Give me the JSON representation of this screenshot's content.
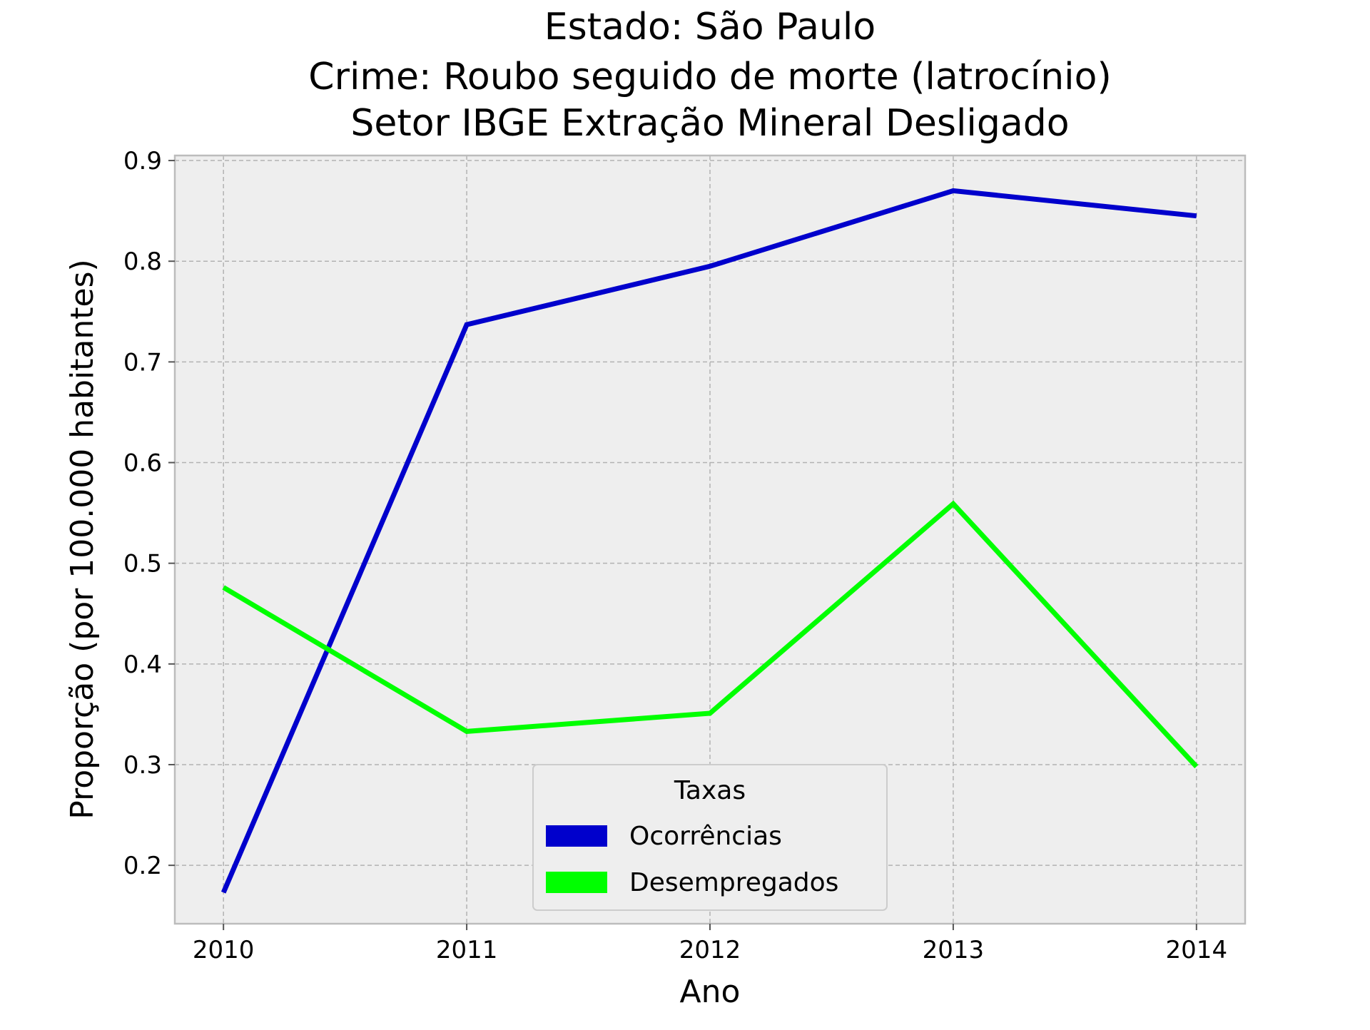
{
  "chart_data": {
    "type": "line",
    "title_lines": [
      "Estado: São Paulo",
      "Crime: Roubo seguido de morte (latrocínio)",
      "Setor IBGE  Extração Mineral   Desligado"
    ],
    "xlabel": "Ano",
    "ylabel": "Proporção (por 100.000 habitantes)",
    "x": [
      2010,
      2011,
      2012,
      2013,
      2014
    ],
    "x_tick_labels": [
      "2010",
      "2011",
      "2012",
      "2013",
      "2014"
    ],
    "y_ticks": [
      0.2,
      0.3,
      0.4,
      0.5,
      0.6,
      0.7,
      0.8,
      0.9
    ],
    "y_tick_labels": [
      "0.2",
      "0.3",
      "0.4",
      "0.5",
      "0.6",
      "0.7",
      "0.8",
      "0.9"
    ],
    "xlim": [
      2009.8,
      2014.2
    ],
    "ylim": [
      0.142,
      0.905
    ],
    "grid": true,
    "background_color": "#eeeeee",
    "legend": {
      "title": "Taxas",
      "placement": "lower-center"
    },
    "series": [
      {
        "name": "Ocorrências",
        "color": "#0000cc",
        "values": [
          0.173,
          0.737,
          0.795,
          0.87,
          0.845
        ]
      },
      {
        "name": "Desempregados",
        "color": "#00ff00",
        "values": [
          0.476,
          0.333,
          0.351,
          0.559,
          0.298
        ]
      }
    ]
  }
}
